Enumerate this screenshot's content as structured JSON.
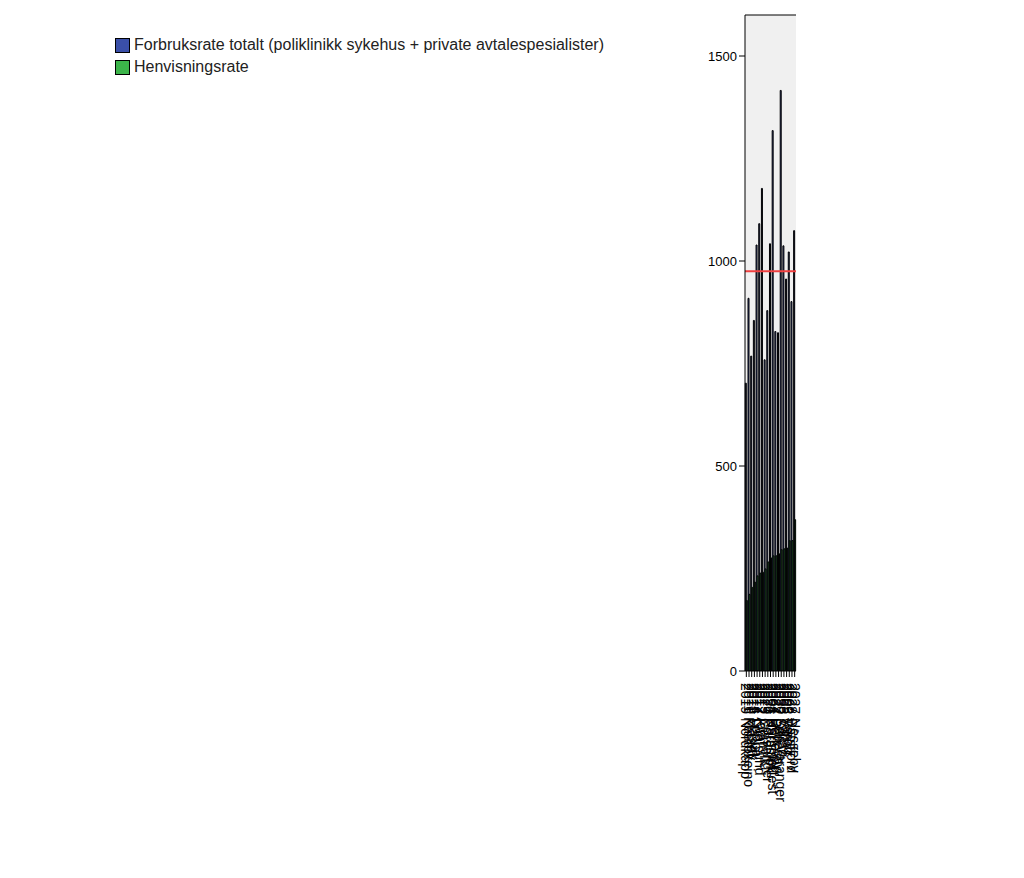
{
  "chart_data": {
    "type": "bar",
    "categories": [
      "2019 Nordkapp",
      "2011 Kautokeino",
      "2018 Måsøy",
      "2015 Hasvik",
      "2014 Loppa",
      "2017 Kvalsund",
      "2012 Alta",
      "2023 Gamvik",
      "2020 Porsanger",
      "2021 Karasjok",
      "2004 Hammerfest",
      "2024 Berlevåg",
      "2022 Lebesby",
      "2030 Sør-Varanger",
      "2003 Vadsø",
      "2025 Tana",
      "2002 Vardø",
      "2028 Båtsfjord",
      "2027 Nesseby"
    ],
    "series": [
      {
        "name": "Forbruksrate totalt (poliklinikk sykehus + private avtalespesialister)",
        "color": "#3a4fa8",
        "values": [
          702,
          909,
          768,
          855,
          1039,
          1091,
          1177,
          759,
          879,
          1042,
          1318,
          828,
          825,
          1416,
          1037,
          956,
          1022,
          901,
          1074
        ]
      },
      {
        "name": "Henvisningsrate",
        "color": "#3cb44a",
        "values": [
          172,
          187,
          204,
          217,
          232,
          239,
          241,
          249,
          266,
          276,
          281,
          281,
          286,
          296,
          298,
          300,
          318,
          318,
          369
        ]
      }
    ],
    "reference_lines": [
      {
        "value": 975,
        "color": "#f04040"
      }
    ],
    "ylim": [
      0,
      1600
    ],
    "yticks": [
      0,
      500,
      1000,
      1500
    ],
    "grid": false,
    "legend": "upper left"
  }
}
